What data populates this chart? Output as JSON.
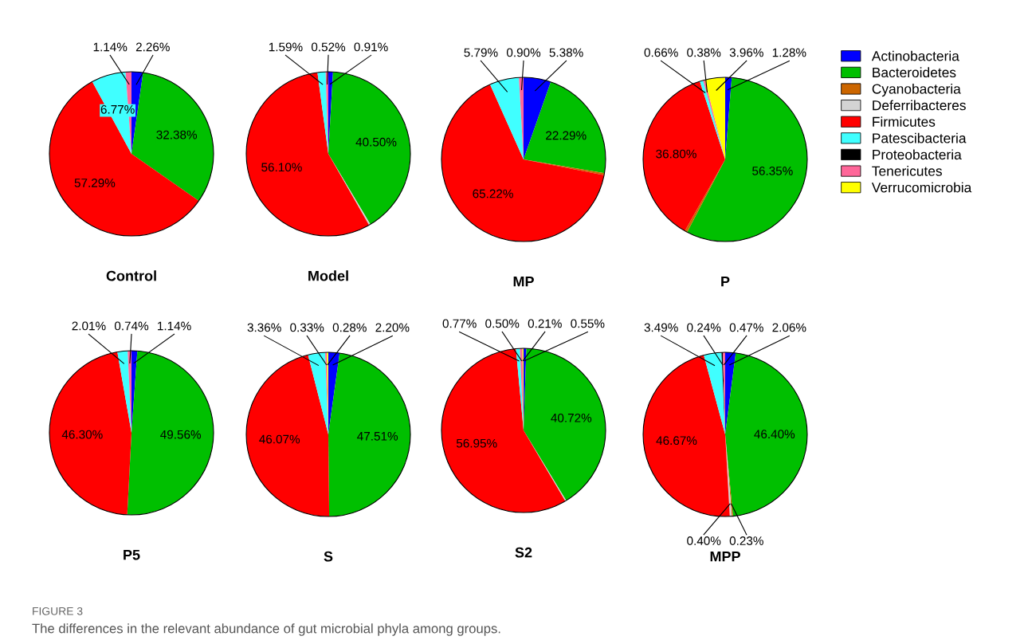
{
  "chart_data": [
    {
      "type": "pie",
      "title": "Control",
      "legend": "right",
      "categories": [
        "Actinobacteria",
        "Bacteroidetes",
        "Cyanobacteria",
        "Deferribacteres",
        "Firmicutes",
        "Patescibacteria",
        "Proteobacteria",
        "Tenericutes",
        "Verrucomicrobia"
      ],
      "colors": [
        "#0000ff",
        "#00bf00",
        "#cc6600",
        "#d3d3d3",
        "#ff0000",
        "#40ffff",
        "#000000",
        "#ff6699",
        "#ffff00"
      ],
      "values": [
        2.26,
        32.38,
        null,
        null,
        57.29,
        6.77,
        null,
        1.14,
        null
      ],
      "value_labels": [
        "2.26%",
        "32.38%",
        null,
        null,
        "57.29%",
        "6.77%",
        null,
        "1.14%",
        null
      ]
    },
    {
      "type": "pie",
      "title": "Model",
      "categories": [
        null,
        null,
        null,
        null,
        null,
        null,
        null,
        null,
        null
      ],
      "colors": [
        "#0000ff",
        "#00bf00",
        "#cc6600",
        "#d3d3d3",
        "#ff0000",
        "#40ffff",
        "#000000",
        "#ff6699",
        "#ffff00"
      ],
      "values": [
        0.91,
        40.5,
        null,
        0.3,
        56.1,
        1.59,
        null,
        0.52,
        null
      ],
      "value_labels": [
        "0.91%",
        "40.50%",
        null,
        null,
        "56.10%",
        "1.59%",
        null,
        "0.52%",
        null
      ]
    },
    {
      "type": "pie",
      "title": "MP",
      "categories": [
        null,
        null,
        null,
        null,
        null,
        null,
        null,
        null,
        null
      ],
      "colors": [
        "#0000ff",
        "#00bf00",
        "#cc6600",
        "#d3d3d3",
        "#ff0000",
        "#40ffff",
        "#000000",
        "#ff6699",
        "#ffff00"
      ],
      "values": [
        5.38,
        22.29,
        0.4,
        null,
        65.22,
        5.79,
        null,
        0.9,
        null
      ],
      "value_labels": [
        "5.38%",
        "22.29%",
        null,
        null,
        "65.22%",
        "5.79%",
        null,
        "0.90%",
        null
      ]
    },
    {
      "type": "pie",
      "title": "P",
      "categories": [
        null,
        null,
        null,
        null,
        null,
        null,
        null,
        null,
        null
      ],
      "colors": [
        "#0000ff",
        "#00bf00",
        "#cc6600",
        "#d3d3d3",
        "#ff0000",
        "#40ffff",
        "#000000",
        "#ff6699",
        "#ffff00"
      ],
      "values": [
        1.28,
        56.35,
        0.5,
        null,
        36.8,
        0.66,
        null,
        0.38,
        3.96
      ],
      "value_labels": [
        "1.28%",
        "56.35%",
        null,
        null,
        "36.80%",
        "0.66%",
        null,
        "0.38%",
        "3.96%"
      ]
    },
    {
      "type": "pie",
      "title": "P5",
      "categories": [
        null,
        null,
        null,
        null,
        null,
        null,
        null,
        null,
        null
      ],
      "colors": [
        "#0000ff",
        "#00bf00",
        "#cc6600",
        "#d3d3d3",
        "#ff0000",
        "#40ffff",
        "#000000",
        "#ff6699",
        "#ffff00"
      ],
      "values": [
        1.14,
        49.56,
        null,
        null,
        46.3,
        2.01,
        null,
        0.74,
        null
      ],
      "value_labels": [
        "1.14%",
        "49.56%",
        null,
        null,
        "46.30%",
        "2.01%",
        null,
        "0.74%",
        null
      ]
    },
    {
      "type": "pie",
      "title": "S",
      "categories": [
        null,
        null,
        null,
        null,
        null,
        null,
        null,
        null,
        null
      ],
      "colors": [
        "#0000ff",
        "#00bf00",
        "#cc6600",
        "#d3d3d3",
        "#ff0000",
        "#40ffff",
        "#000000",
        "#ff6699",
        "#ffff00"
      ],
      "values": [
        2.2,
        47.51,
        null,
        null,
        46.07,
        3.36,
        null,
        0.33,
        0.28
      ],
      "value_labels": [
        "2.20%",
        "47.51%",
        null,
        null,
        "46.07%",
        "3.36%",
        null,
        "0.33%",
        "0.28%"
      ]
    },
    {
      "type": "pie",
      "title": "S2",
      "categories": [
        null,
        null,
        null,
        null,
        null,
        null,
        null,
        null,
        null
      ],
      "colors": [
        "#0000ff",
        "#00bf00",
        "#cc6600",
        "#d3d3d3",
        "#ff0000",
        "#40ffff",
        "#000000",
        "#ff6699",
        "#ffff00"
      ],
      "values": [
        0.55,
        40.72,
        null,
        0.2,
        56.95,
        0.77,
        null,
        0.5,
        0.21
      ],
      "value_labels": [
        "0.55%",
        "40.72%",
        null,
        null,
        "56.95%",
        "0.77%",
        null,
        "0.50%",
        "0.21%"
      ]
    },
    {
      "type": "pie",
      "title": "MPP",
      "categories": [
        null,
        null,
        null,
        null,
        null,
        null,
        null,
        null,
        null
      ],
      "colors": [
        "#0000ff",
        "#00bf00",
        "#cc6600",
        "#d3d3d3",
        "#ff0000",
        "#40ffff",
        "#000000",
        "#ff6699",
        "#ffff00"
      ],
      "values": [
        2.06,
        46.4,
        0.23,
        0.4,
        46.67,
        3.49,
        0.24,
        0.47,
        null
      ],
      "value_labels": [
        "2.06%",
        "46.40%",
        "0.23%",
        "0.40%",
        "46.67%",
        "3.49%",
        "0.24%",
        "0.47%",
        null
      ],
      "annotations": [
        "FIGURE 3",
        "The differences in the relevant abundance of gut microbial phyla among groups."
      ]
    }
  ]
}
